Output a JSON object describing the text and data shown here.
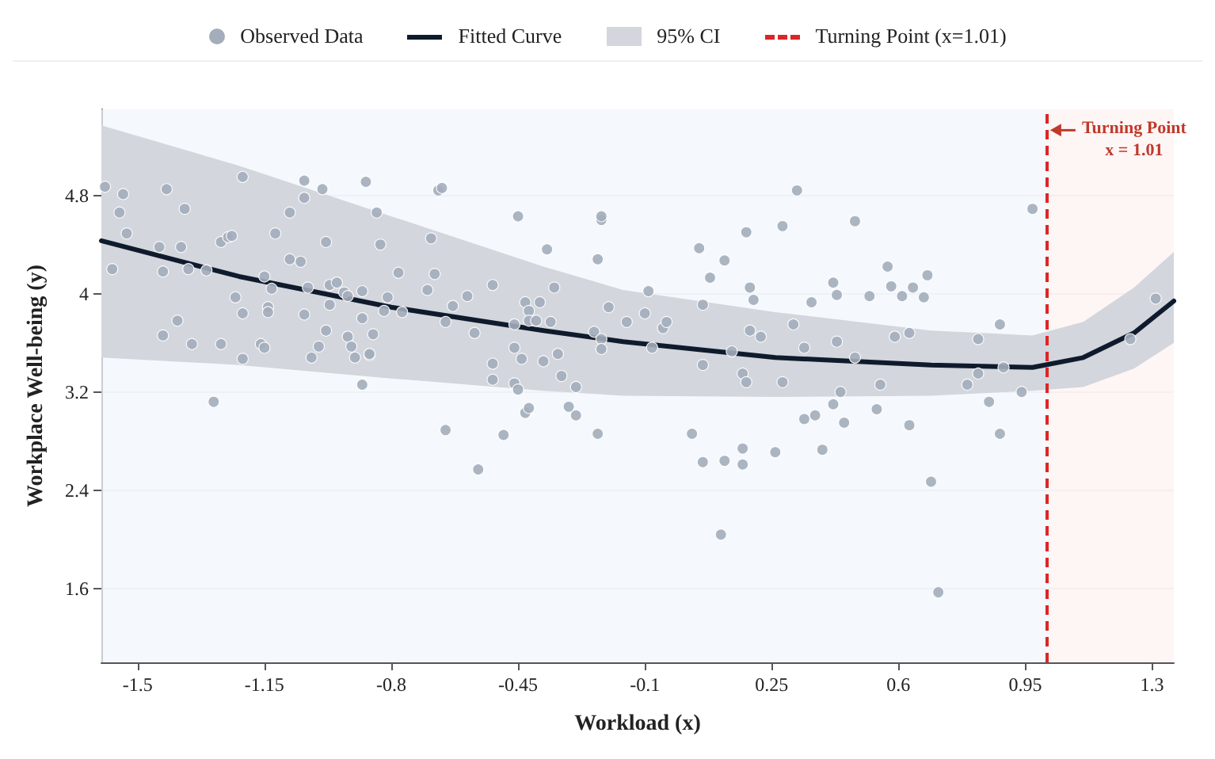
{
  "chart_data": {
    "type": "scatter",
    "xlabel": "Workload (x)",
    "ylabel": "Workplace Well-being (y)",
    "xlim": [
      -1.6,
      1.36
    ],
    "ylim": [
      1,
      5.5
    ],
    "xticks": [
      -1.5,
      -1.15,
      -0.8,
      -0.45,
      -0.1,
      0.25,
      0.6,
      0.95,
      1.3
    ],
    "yticks": [
      1.6,
      2.4,
      3.2,
      4,
      4.8
    ],
    "grid": "y",
    "legend": "top",
    "series": [
      {
        "name": "Observed Data",
        "color": "#a3adbb",
        "marker": "circle",
        "x": [
          -1.59,
          -1.54,
          -1.55,
          -1.53,
          -1.57,
          -1.44,
          -1.43,
          -1.42,
          -1.37,
          -1.38,
          -1.36,
          -1.39,
          -1.43,
          -1.35,
          -1.31,
          -1.27,
          -1.25,
          -1.24,
          -1.21,
          -1.27,
          -1.23,
          -1.21,
          -1.21,
          -1.16,
          -1.15,
          -1.15,
          -1.13,
          -1.14,
          -1.14,
          -1.12,
          -1.08,
          -1.08,
          -1.05,
          -1.04,
          -1.04,
          -1.04,
          -1.03,
          -0.99,
          -0.98,
          -1.02,
          -1.0,
          -0.98,
          -0.97,
          -0.97,
          -0.95,
          -0.93,
          -0.92,
          -0.92,
          -0.91,
          -0.9,
          -0.88,
          -0.88,
          -0.85,
          -0.86,
          -0.86,
          -0.87,
          -0.84,
          -0.83,
          -0.82,
          -0.81,
          -0.78,
          -0.77,
          -0.88,
          -0.7,
          -0.69,
          -0.68,
          -0.67,
          -0.66,
          -0.65,
          -0.63,
          -0.59,
          -0.57,
          -0.52,
          -0.52,
          -0.52,
          -0.46,
          -0.46,
          -0.45,
          -0.46,
          -0.44,
          -0.45,
          -0.43,
          -0.42,
          -0.42,
          -0.4,
          -0.39,
          -0.37,
          -0.36,
          -0.35,
          -0.34,
          -0.38,
          -0.33,
          -0.29,
          -0.24,
          -0.22,
          -0.22,
          -0.23,
          -0.22,
          -0.22,
          -0.2,
          -0.15,
          -1.29,
          -0.65,
          -0.56,
          -0.49,
          -0.43,
          -0.42,
          -0.31,
          -0.29,
          -0.23,
          -0.1,
          -0.09,
          -0.05,
          -0.04,
          -0.08,
          0.05,
          0.08,
          0.12,
          0.06,
          0.06,
          0.18,
          0.19,
          0.2,
          0.19,
          0.22,
          0.14,
          0.17,
          0.18,
          0.28,
          0.32,
          0.31,
          0.34,
          0.28,
          0.36,
          0.42,
          0.43,
          0.43,
          0.44,
          0.48,
          0.48,
          0.52,
          0.55,
          0.57,
          0.58,
          0.61,
          0.59,
          0.63,
          0.64,
          0.68,
          0.67,
          0.79,
          0.82,
          0.82,
          0.88,
          0.89,
          0.94,
          0.97,
          1.24,
          1.31,
          0.03,
          0.06,
          0.12,
          0.11,
          0.17,
          0.17,
          0.26,
          0.34,
          0.37,
          0.42,
          0.45,
          0.39,
          0.54,
          0.63,
          0.69,
          0.71,
          0.85,
          0.88
        ],
        "values": [
          4.87,
          4.81,
          4.66,
          4.49,
          4.2,
          4.38,
          4.18,
          4.85,
          4.69,
          4.38,
          4.2,
          3.78,
          3.66,
          3.59,
          4.19,
          4.42,
          4.46,
          4.47,
          4.95,
          3.59,
          3.97,
          3.84,
          3.47,
          3.59,
          3.56,
          4.14,
          4.04,
          3.89,
          3.85,
          4.49,
          4.28,
          4.66,
          4.26,
          4.92,
          4.78,
          3.83,
          4.05,
          4.85,
          4.42,
          3.48,
          3.57,
          3.7,
          3.91,
          4.07,
          4.09,
          4.01,
          3.98,
          3.65,
          3.57,
          3.48,
          3.8,
          4.02,
          3.67,
          3.5,
          3.51,
          4.91,
          4.66,
          4.4,
          3.86,
          3.97,
          4.17,
          3.85,
          3.26,
          4.03,
          4.45,
          4.16,
          4.84,
          4.86,
          3.77,
          3.9,
          3.98,
          3.68,
          4.07,
          3.43,
          3.3,
          3.56,
          3.27,
          4.63,
          3.75,
          3.47,
          3.22,
          3.93,
          3.86,
          3.78,
          3.78,
          3.93,
          4.36,
          3.77,
          4.05,
          3.51,
          3.45,
          3.33,
          3.24,
          3.69,
          3.63,
          3.55,
          4.28,
          4.6,
          4.63,
          3.89,
          3.77,
          3.12,
          2.89,
          2.57,
          2.85,
          3.03,
          3.07,
          3.08,
          3.01,
          2.86,
          3.84,
          4.02,
          3.72,
          3.77,
          3.56,
          4.37,
          4.13,
          4.27,
          3.91,
          3.42,
          4.5,
          4.05,
          3.95,
          3.7,
          3.65,
          3.53,
          3.35,
          3.28,
          4.55,
          4.84,
          3.75,
          3.56,
          3.28,
          3.93,
          4.09,
          3.99,
          3.61,
          3.2,
          4.59,
          3.48,
          3.98,
          3.26,
          4.22,
          4.06,
          3.98,
          3.65,
          3.68,
          4.05,
          4.15,
          3.97,
          3.26,
          3.35,
          3.63,
          3.75,
          3.4,
          3.2,
          4.69,
          3.63,
          3.96,
          2.86,
          2.63,
          2.64,
          2.04,
          2.74,
          2.61,
          2.71,
          2.98,
          3.01,
          3.1,
          2.95,
          2.73,
          3.06,
          2.93,
          2.47,
          1.57,
          3.12,
          2.86
        ]
      },
      {
        "name": "Fitted Curve",
        "type": "line",
        "color": "#0f1b2d",
        "line_style": "solid",
        "x": [
          -1.6,
          -1.22,
          -0.8,
          -0.38,
          -0.16,
          0.26,
          0.69,
          0.97,
          1.11,
          1.25,
          1.36
        ],
        "values": [
          4.43,
          4.14,
          3.89,
          3.7,
          3.61,
          3.48,
          3.42,
          3.4,
          3.48,
          3.68,
          3.94
        ],
        "lower": [
          3.48,
          3.42,
          3.31,
          3.21,
          3.17,
          3.16,
          3.17,
          3.21,
          3.24,
          3.39,
          3.6
        ],
        "upper": [
          5.37,
          5.04,
          4.63,
          4.22,
          4.03,
          3.85,
          3.7,
          3.66,
          3.77,
          4.05,
          4.34
        ]
      }
    ],
    "ref_lines": [
      {
        "axis": "x",
        "value": 1.01,
        "label": "Turning Point (x=1.01)",
        "color": "#dc2626",
        "line_style": "dashed"
      }
    ],
    "bands": [
      {
        "axis": "x",
        "from": -1.6,
        "to": 1.01,
        "color": "#f2f7fc"
      },
      {
        "axis": "x",
        "from": 1.01,
        "to": 1.36,
        "color": "#fdf3f2"
      }
    ],
    "annotations": [
      "95% CI",
      {
        "text": "Turning Point\nx = 1.01",
        "x": 1.01,
        "y": 5.33
      }
    ]
  }
}
